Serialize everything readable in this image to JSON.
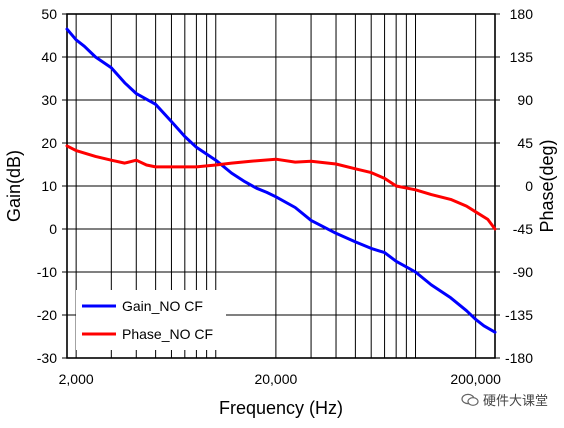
{
  "chart_data": {
    "type": "line",
    "xlabel": "Frequency (Hz)",
    "ylabel_left": "Gain(dB)",
    "ylabel_right": "Phase(deg)",
    "x_scale": "log",
    "xlim": [
      1800,
      250000
    ],
    "x_ticks": [
      2000,
      20000,
      200000
    ],
    "x_tick_labels": [
      "2,000",
      "20,000",
      "200,000"
    ],
    "ylim_left": [
      -30,
      50
    ],
    "y_ticks_left": [
      -30,
      -20,
      -10,
      0,
      10,
      20,
      30,
      40,
      50
    ],
    "ylim_right": [
      -180,
      180
    ],
    "y_ticks_right": [
      -180,
      -135,
      -90,
      -45,
      0,
      45,
      90,
      135,
      180
    ],
    "grid": true,
    "legend_position": "bottom-left",
    "series": [
      {
        "name": "Gain_NO CF",
        "axis": "left",
        "color": "#0000ff",
        "x": [
          1800,
          2000,
          2200,
          2500,
          3000,
          3500,
          4000,
          5000,
          6000,
          7000,
          8000,
          10000,
          12000,
          14000,
          16000,
          18000,
          20000,
          25000,
          30000,
          40000,
          50000,
          60000,
          70000,
          80000,
          100000,
          120000,
          150000,
          180000,
          200000,
          220000,
          250000
        ],
        "y": [
          46.5,
          44,
          42.5,
          40,
          37.5,
          34,
          31.5,
          29,
          25,
          21.5,
          19,
          16,
          13,
          11,
          9.5,
          8.5,
          7.5,
          5,
          2,
          -1,
          -3,
          -4.5,
          -5.5,
          -7.5,
          -10,
          -13,
          -16,
          -19,
          -21,
          -22.5,
          -24
        ]
      },
      {
        "name": "Phase_NO CF",
        "axis": "right",
        "color": "#ff0000",
        "x": [
          1800,
          2000,
          2500,
          3000,
          3500,
          4000,
          4500,
          5000,
          6000,
          7000,
          8000,
          10000,
          12000,
          15000,
          20000,
          25000,
          30000,
          40000,
          50000,
          60000,
          70000,
          80000,
          100000,
          120000,
          150000,
          180000,
          200000,
          230000,
          250000
        ],
        "y": [
          42,
          37,
          31,
          27,
          24,
          27,
          22,
          20,
          20,
          20,
          20,
          22,
          24,
          26,
          28,
          25,
          26,
          23,
          18,
          14,
          8,
          0,
          -4,
          -9,
          -14,
          -21,
          -27,
          -35,
          -45
        ]
      }
    ]
  },
  "watermark": {
    "text": "硬件大课堂"
  }
}
